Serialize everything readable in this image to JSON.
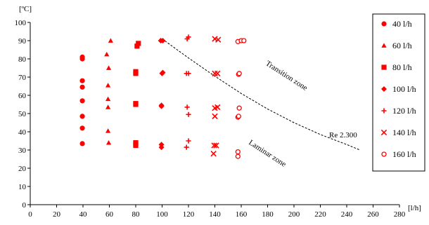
{
  "chart_data": {
    "type": "scatter",
    "title": "",
    "xlabel": "[l/h]",
    "ylabel": "[ºC]",
    "xlim": [
      0,
      280
    ],
    "ylim": [
      0,
      100
    ],
    "xticks": [
      0,
      20,
      40,
      60,
      80,
      100,
      120,
      140,
      160,
      180,
      200,
      220,
      240,
      260,
      280
    ],
    "yticks": [
      0,
      10,
      20,
      30,
      40,
      50,
      60,
      70,
      80,
      90,
      100
    ],
    "grid": false,
    "legend_position": "right",
    "marker_color": "#ff0000",
    "series": [
      {
        "name": "40 l/h",
        "marker": "circle",
        "points": [
          [
            39.5,
            33.5
          ],
          [
            39.5,
            42
          ],
          [
            39.5,
            48.5
          ],
          [
            39.5,
            57
          ],
          [
            39.5,
            64.5
          ],
          [
            39.5,
            68
          ],
          [
            39.5,
            80
          ],
          [
            39.5,
            81
          ]
        ]
      },
      {
        "name": "60 l/h",
        "marker": "triangle",
        "points": [
          [
            59.5,
            34
          ],
          [
            59,
            40.5
          ],
          [
            59,
            53.5
          ],
          [
            59,
            58
          ],
          [
            59,
            65.5
          ],
          [
            59.5,
            75
          ],
          [
            58,
            82.5
          ],
          [
            61,
            90
          ]
        ]
      },
      {
        "name": "80 l/h",
        "marker": "square",
        "points": [
          [
            80,
            32.5
          ],
          [
            80,
            33.5
          ],
          [
            80,
            34
          ],
          [
            80,
            55
          ],
          [
            80,
            55.5
          ],
          [
            80,
            72
          ],
          [
            80,
            73
          ],
          [
            81,
            87
          ],
          [
            82,
            88.5
          ]
        ]
      },
      {
        "name": "100 l/h",
        "marker": "diamond",
        "points": [
          [
            99.5,
            31.5
          ],
          [
            99.5,
            33
          ],
          [
            99.5,
            54
          ],
          [
            99.5,
            54.5
          ],
          [
            100,
            72
          ],
          [
            100.5,
            72.5
          ],
          [
            99,
            90
          ],
          [
            100.5,
            90
          ]
        ]
      },
      {
        "name": "120 l/h",
        "marker": "plus",
        "points": [
          [
            118.5,
            31.5
          ],
          [
            120,
            35
          ],
          [
            120,
            49.5
          ],
          [
            119,
            53.5
          ],
          [
            118.5,
            72
          ],
          [
            120,
            72
          ],
          [
            119,
            91
          ],
          [
            120,
            92
          ]
        ]
      },
      {
        "name": "140 l/h",
        "marker": "x",
        "points": [
          [
            139,
            28
          ],
          [
            139.5,
            32.5
          ],
          [
            141,
            32.5
          ],
          [
            140,
            48.5
          ],
          [
            140,
            53
          ],
          [
            142,
            53.5
          ],
          [
            140,
            72
          ],
          [
            142,
            72
          ],
          [
            140,
            91
          ],
          [
            142.5,
            90.5
          ]
        ]
      },
      {
        "name": "160 l/h",
        "marker": "circle-open",
        "points": [
          [
            157.5,
            26.5
          ],
          [
            157.5,
            29
          ],
          [
            157.5,
            48
          ],
          [
            158,
            48.5
          ],
          [
            158.5,
            53
          ],
          [
            158,
            71.5
          ],
          [
            158.5,
            72
          ],
          [
            157.5,
            89.5
          ],
          [
            160,
            90
          ],
          [
            162,
            90
          ]
        ]
      }
    ],
    "curve": {
      "label": "Re 2.300",
      "style": "dashed",
      "points": [
        [
          100,
          91
        ],
        [
          120,
          80.5
        ],
        [
          140,
          70.5
        ],
        [
          160,
          61
        ],
        [
          180,
          52.5
        ],
        [
          200,
          45
        ],
        [
          220,
          38.5
        ],
        [
          240,
          33
        ],
        [
          250,
          30
        ]
      ]
    },
    "annotations": [
      "Transition zone",
      "Laminar zone"
    ]
  }
}
